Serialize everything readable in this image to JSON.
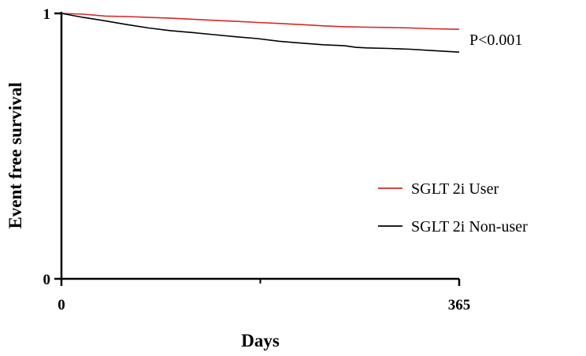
{
  "chart_data": {
    "type": "line",
    "title": "",
    "xlabel": "Days",
    "ylabel": "Event free survival",
    "xlim": [
      0,
      365
    ],
    "ylim": [
      0,
      1
    ],
    "x_ticks": [
      {
        "value": 0,
        "label": "0"
      },
      {
        "value": 365,
        "label": "365"
      }
    ],
    "x_minor_ticks": [
      182.5
    ],
    "y_ticks": [
      {
        "value": 0,
        "label": "0"
      },
      {
        "value": 1,
        "label": "1"
      }
    ],
    "grid": false,
    "legend_position": "right",
    "annotation": "P<0.001",
    "series": [
      {
        "name": "SGLT 2i User",
        "color": "#d62728",
        "points": [
          [
            0,
            1.0
          ],
          [
            20,
            0.997
          ],
          [
            40,
            0.99
          ],
          [
            60,
            0.988
          ],
          [
            80,
            0.985
          ],
          [
            100,
            0.982
          ],
          [
            120,
            0.978
          ],
          [
            140,
            0.974
          ],
          [
            160,
            0.97
          ],
          [
            180,
            0.966
          ],
          [
            200,
            0.962
          ],
          [
            220,
            0.958
          ],
          [
            240,
            0.953
          ],
          [
            260,
            0.95
          ],
          [
            280,
            0.948
          ],
          [
            300,
            0.947
          ],
          [
            320,
            0.945
          ],
          [
            340,
            0.942
          ],
          [
            365,
            0.94
          ]
        ]
      },
      {
        "name": "SGLT 2i Non-user",
        "color": "#000000",
        "points": [
          [
            0,
            1.0
          ],
          [
            20,
            0.985
          ],
          [
            40,
            0.972
          ],
          [
            60,
            0.958
          ],
          [
            80,
            0.945
          ],
          [
            100,
            0.935
          ],
          [
            120,
            0.928
          ],
          [
            140,
            0.92
          ],
          [
            160,
            0.912
          ],
          [
            180,
            0.905
          ],
          [
            200,
            0.895
          ],
          [
            220,
            0.888
          ],
          [
            240,
            0.882
          ],
          [
            260,
            0.878
          ],
          [
            270,
            0.872
          ],
          [
            280,
            0.87
          ],
          [
            300,
            0.868
          ],
          [
            320,
            0.865
          ],
          [
            340,
            0.86
          ],
          [
            365,
            0.854
          ]
        ]
      }
    ]
  }
}
